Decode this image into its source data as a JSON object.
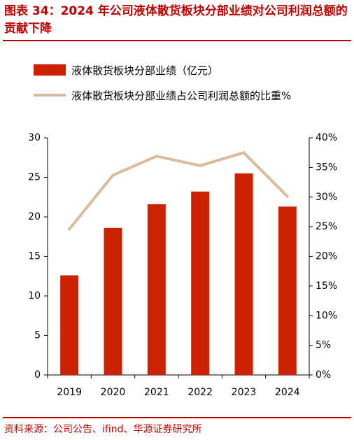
{
  "title": "图表 34：2024 年公司液体散货板块分部业绩对公司利润总额的贡献下降",
  "source": "资料来源：公司公告、ifind、华源证券研究所",
  "colors": {
    "accent": "#c00000",
    "bar": "#cc2200",
    "line": "#d8bc9c"
  },
  "chart_data": {
    "type": "bar",
    "categories": [
      "2019",
      "2020",
      "2021",
      "2022",
      "2023",
      "2024"
    ],
    "series": [
      {
        "name": "液体散货板块分部业绩（亿元）",
        "type": "bar",
        "axis": "left",
        "values": [
          12.6,
          18.6,
          21.6,
          23.2,
          25.5,
          21.3
        ]
      },
      {
        "name": "液体散货板块分部业绩占公司利润总额的比重%",
        "type": "line",
        "axis": "right",
        "values": [
          24.6,
          33.7,
          36.9,
          35.3,
          37.5,
          30.1
        ]
      }
    ],
    "y_left": {
      "min": 0,
      "max": 30,
      "ticks": [
        "0",
        "5",
        "10",
        "15",
        "20",
        "25",
        "30"
      ]
    },
    "y_right": {
      "min": 0,
      "max": 40,
      "ticks": [
        "0%",
        "5%",
        "10%",
        "15%",
        "20%",
        "25%",
        "30%",
        "35%",
        "40%"
      ]
    },
    "legend_position": "top-left",
    "grid": false
  }
}
